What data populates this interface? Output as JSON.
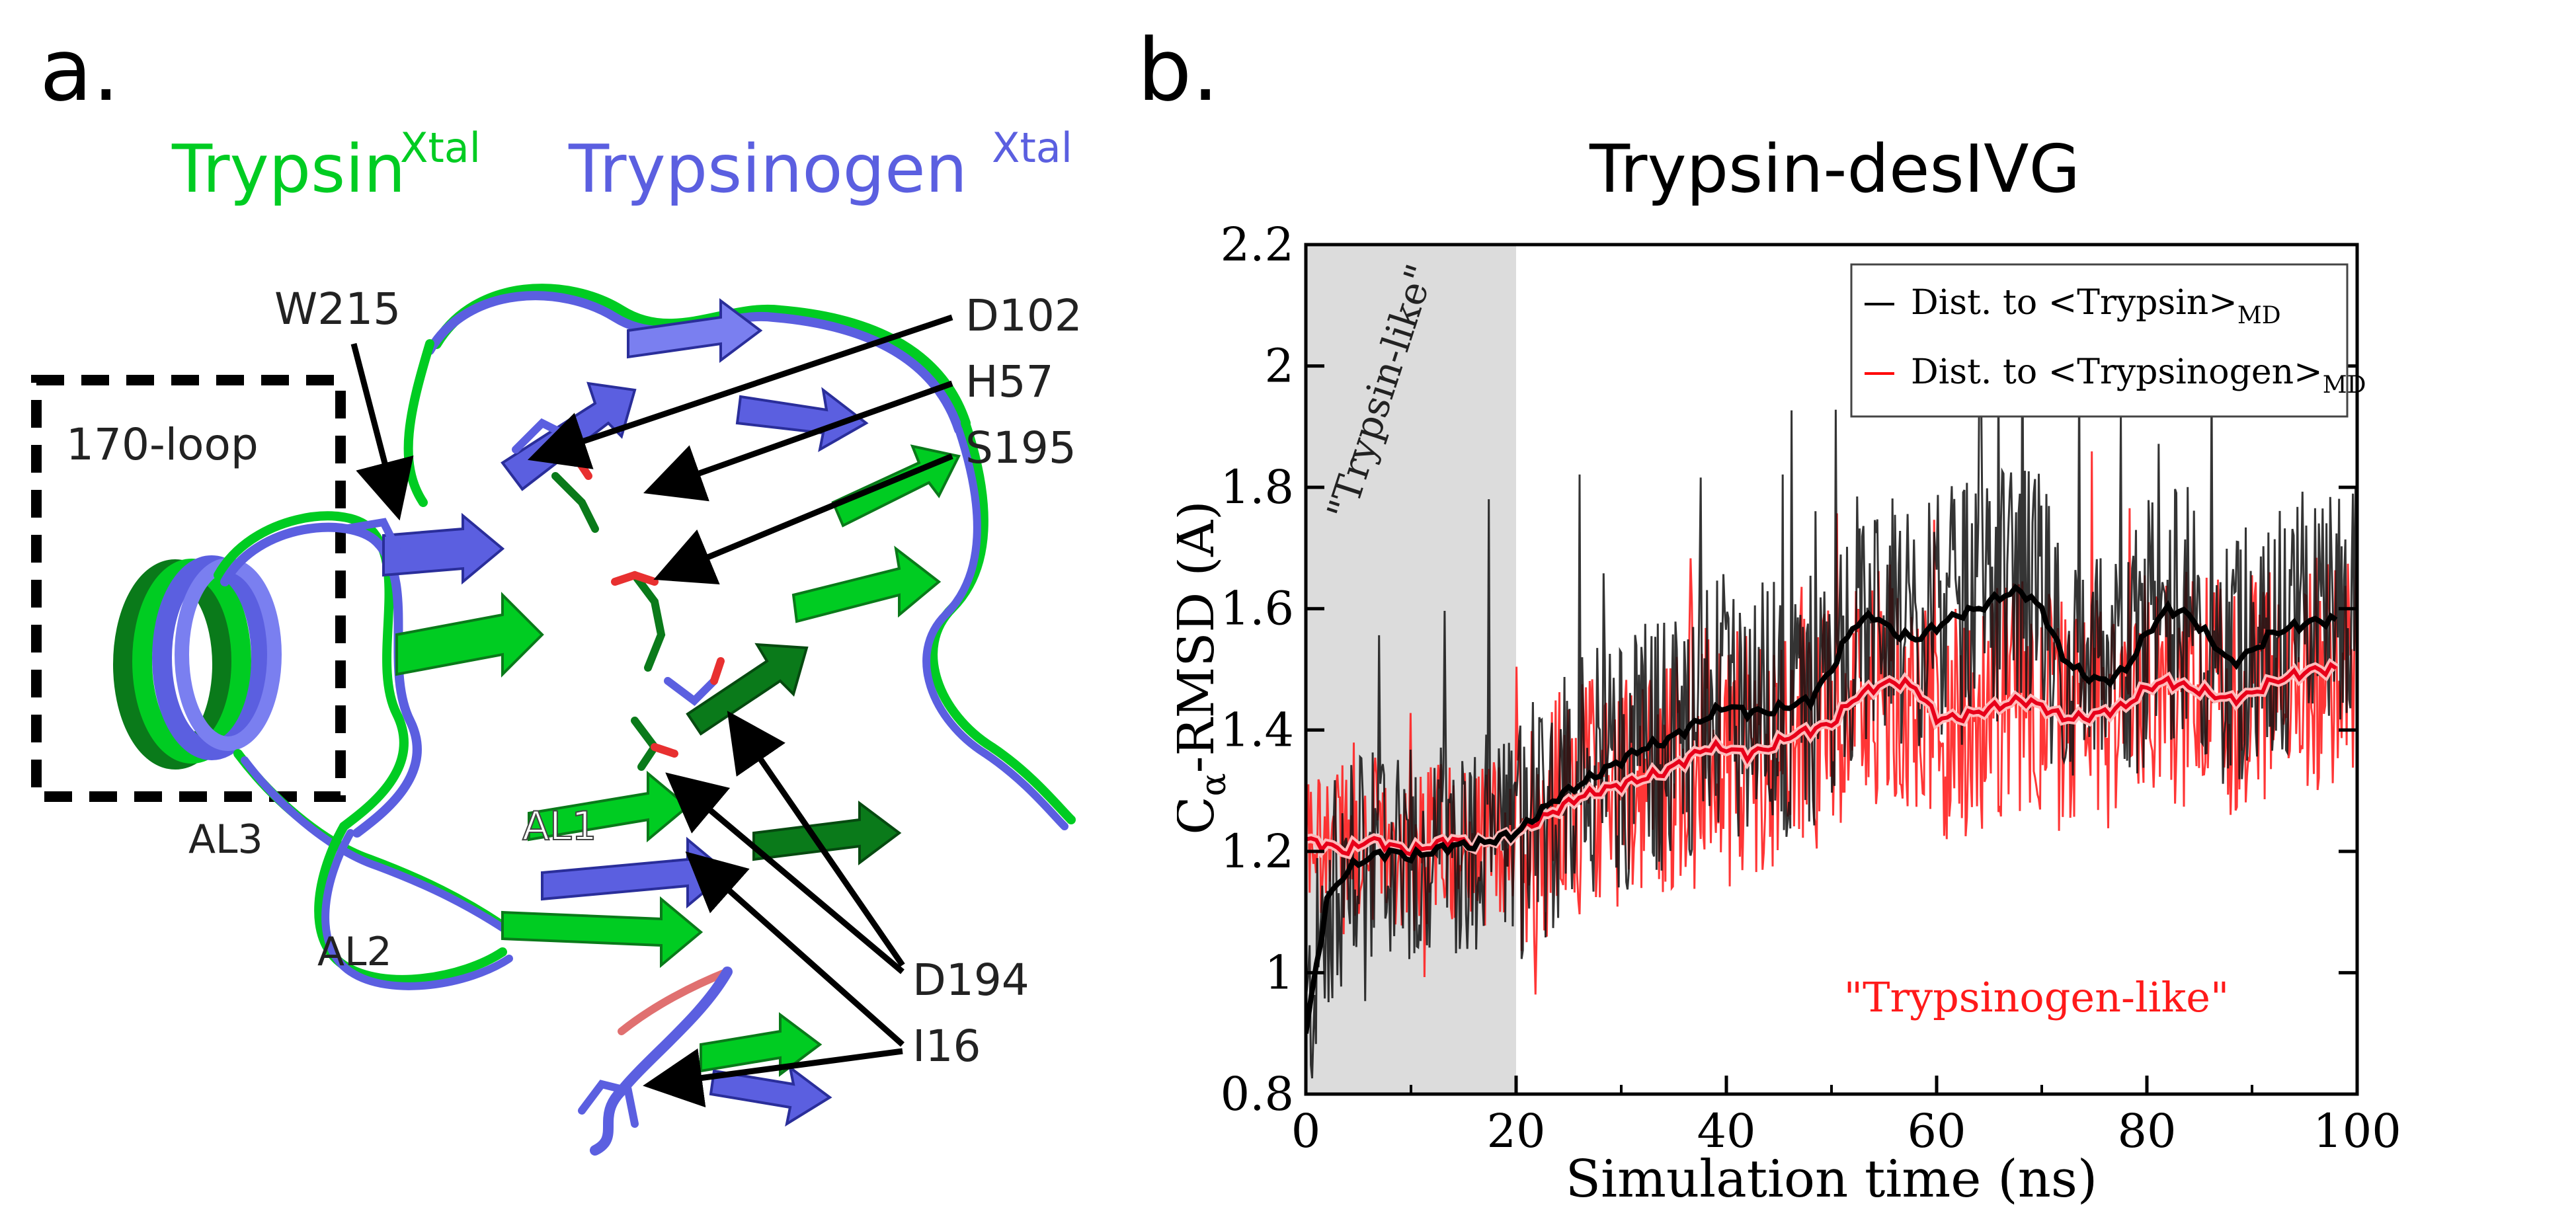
{
  "panel_a": {
    "letter": "a.",
    "title_left": "Trypsin",
    "title_left_sup": "Xtal",
    "title_right": "Trypsinogen",
    "title_right_sup": "Xtal",
    "box_label": "170-loop",
    "residues": [
      "W215",
      "D102",
      "H57",
      "S195",
      "D194",
      "I16"
    ],
    "loops": [
      "AL3",
      "AL1",
      "AL2"
    ],
    "colors": {
      "trypsin": "#00cc22",
      "trypsinogen": "#5b5fe0",
      "dark_green": "#0a7a1a"
    }
  },
  "panel_b": {
    "letter": "b.",
    "title": "Trypsin-desIVG",
    "shaded_label": "\"Trypsin-like\"",
    "red_label": "\"Trypsinogen-like\"",
    "xlabel": "Simulation time (ns)",
    "ylabel_main": "C",
    "ylabel_sub": "α",
    "ylabel_rest": "-RMSD (Å)",
    "legend": [
      {
        "text": "Dist. to <Trypsin>",
        "sub": "MD",
        "color": "#000000"
      },
      {
        "text": "Dist. to <Trypsinogen>",
        "sub": "MD",
        "color": "#ff0000"
      }
    ]
  },
  "chart_data": {
    "type": "line",
    "title": "Trypsin-desIVG",
    "xlabel": "Simulation time (ns)",
    "ylabel": "Cα-RMSD (Å)",
    "xlim": [
      0,
      100
    ],
    "ylim": [
      0.8,
      2.2
    ],
    "xticks": [
      0,
      20,
      40,
      60,
      80,
      100
    ],
    "yticks": [
      0.8,
      1,
      1.2,
      1.4,
      1.6,
      1.8,
      2,
      2.2
    ],
    "shaded_region_x": [
      0,
      20
    ],
    "series": [
      {
        "name": "Dist. to <Trypsin>MD (running average)",
        "color": "#000000",
        "x": [
          0,
          2,
          4,
          6,
          8,
          10,
          12,
          14,
          16,
          18,
          20,
          22,
          24,
          26,
          28,
          30,
          32,
          34,
          36,
          38,
          40,
          42,
          44,
          46,
          48,
          50,
          52,
          54,
          56,
          58,
          60,
          62,
          64,
          66,
          68,
          70,
          72,
          74,
          76,
          78,
          80,
          82,
          84,
          86,
          88,
          90,
          92,
          94,
          96,
          98
        ],
        "values": [
          0.9,
          1.12,
          1.17,
          1.19,
          1.2,
          1.19,
          1.2,
          1.21,
          1.21,
          1.22,
          1.23,
          1.26,
          1.29,
          1.31,
          1.33,
          1.35,
          1.37,
          1.38,
          1.4,
          1.42,
          1.44,
          1.43,
          1.43,
          1.44,
          1.45,
          1.5,
          1.57,
          1.59,
          1.56,
          1.55,
          1.57,
          1.59,
          1.6,
          1.62,
          1.63,
          1.6,
          1.52,
          1.49,
          1.48,
          1.5,
          1.56,
          1.6,
          1.59,
          1.55,
          1.51,
          1.53,
          1.56,
          1.57,
          1.58,
          1.58
        ]
      },
      {
        "name": "Dist. to <Trypsinogen>MD (running average)",
        "color": "#ff0000",
        "x": [
          0,
          2,
          4,
          6,
          8,
          10,
          12,
          14,
          16,
          18,
          20,
          22,
          24,
          26,
          28,
          30,
          32,
          34,
          36,
          38,
          40,
          42,
          44,
          46,
          48,
          50,
          52,
          54,
          56,
          58,
          60,
          62,
          64,
          66,
          68,
          70,
          72,
          74,
          76,
          78,
          80,
          82,
          84,
          86,
          88,
          90,
          92,
          94,
          96,
          98
        ],
        "values": [
          1.22,
          1.21,
          1.2,
          1.22,
          1.21,
          1.2,
          1.21,
          1.22,
          1.21,
          1.22,
          1.23,
          1.25,
          1.27,
          1.29,
          1.3,
          1.31,
          1.32,
          1.33,
          1.35,
          1.37,
          1.37,
          1.36,
          1.37,
          1.39,
          1.4,
          1.41,
          1.45,
          1.47,
          1.48,
          1.47,
          1.42,
          1.42,
          1.43,
          1.44,
          1.45,
          1.44,
          1.42,
          1.42,
          1.43,
          1.44,
          1.47,
          1.48,
          1.47,
          1.46,
          1.45,
          1.46,
          1.48,
          1.49,
          1.5,
          1.5
        ]
      }
    ],
    "legend_position": "top-right",
    "annotations": [
      "\"Trypsin-like\"",
      "\"Trypsinogen-like\""
    ]
  }
}
